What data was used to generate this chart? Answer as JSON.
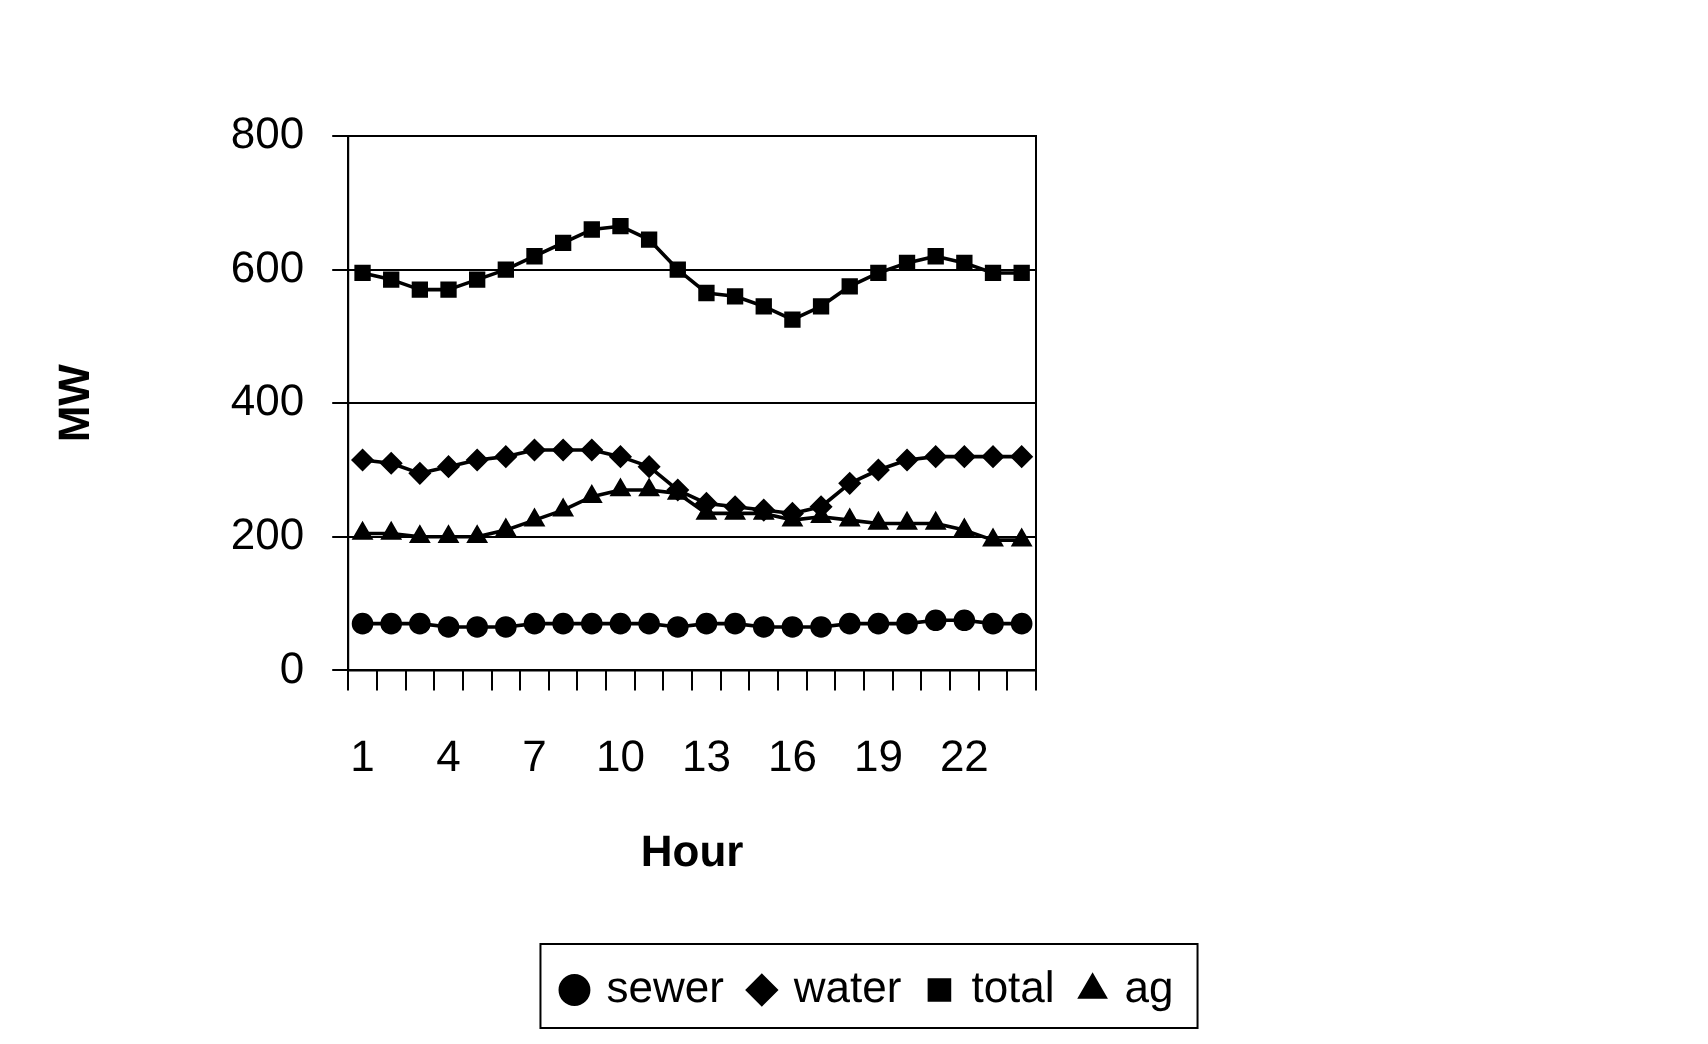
{
  "chart_data": {
    "type": "line",
    "xlabel": "Hour",
    "ylabel": "MW",
    "categories": [
      "1",
      null,
      null,
      "4",
      null,
      null,
      "7",
      null,
      null,
      "10",
      null,
      null,
      "13",
      null,
      null,
      "16",
      null,
      null,
      "19",
      null,
      null,
      "22",
      null,
      null
    ],
    "series": [
      {
        "name": "sewer",
        "color": "#000000",
        "marker": "circle",
        "values": [
          70,
          70,
          70,
          65,
          65,
          65,
          70,
          70,
          70,
          70,
          70,
          65,
          70,
          70,
          65,
          65,
          65,
          70,
          70,
          70,
          75,
          75,
          70,
          70
        ]
      },
      {
        "name": "water",
        "color": "#000000",
        "marker": "diamond",
        "values": [
          315,
          310,
          295,
          305,
          315,
          320,
          330,
          330,
          330,
          320,
          305,
          270,
          250,
          245,
          240,
          235,
          245,
          280,
          300,
          315,
          320,
          320,
          320,
          320
        ]
      },
      {
        "name": "total",
        "color": "#000000",
        "marker": "square",
        "values": [
          595,
          585,
          570,
          570,
          585,
          600,
          620,
          640,
          660,
          665,
          645,
          600,
          565,
          560,
          545,
          525,
          545,
          575,
          595,
          610,
          620,
          610,
          595,
          595
        ]
      },
      {
        "name": "ag",
        "color": "#000000",
        "marker": "triangle",
        "values": [
          205,
          205,
          200,
          200,
          200,
          210,
          225,
          240,
          260,
          270,
          270,
          265,
          235,
          235,
          235,
          225,
          230,
          225,
          220,
          220,
          220,
          210,
          195,
          195
        ]
      }
    ],
    "ylim": [
      0,
      800
    ],
    "yticks": [
      0,
      200,
      400,
      600,
      800
    ],
    "grid": "y",
    "legend": "bottom",
    "line_style": "solid"
  }
}
